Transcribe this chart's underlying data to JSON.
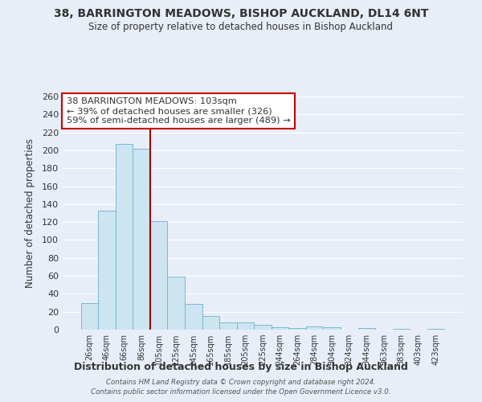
{
  "title": "38, BARRINGTON MEADOWS, BISHOP AUCKLAND, DL14 6NT",
  "subtitle": "Size of property relative to detached houses in Bishop Auckland",
  "xlabel": "Distribution of detached houses by size in Bishop Auckland",
  "ylabel": "Number of detached properties",
  "bar_labels": [
    "26sqm",
    "46sqm",
    "66sqm",
    "86sqm",
    "105sqm",
    "125sqm",
    "145sqm",
    "165sqm",
    "185sqm",
    "205sqm",
    "225sqm",
    "244sqm",
    "264sqm",
    "284sqm",
    "304sqm",
    "324sqm",
    "344sqm",
    "363sqm",
    "383sqm",
    "403sqm",
    "423sqm"
  ],
  "bar_values": [
    30,
    133,
    207,
    202,
    121,
    59,
    29,
    15,
    8,
    8,
    5,
    3,
    2,
    4,
    3,
    0,
    2,
    0,
    1,
    0,
    1
  ],
  "bar_color": "#cce5f0",
  "bar_edge_color": "#7ab8d4",
  "vline_color": "#990000",
  "annotation_title": "38 BARRINGTON MEADOWS: 103sqm",
  "annotation_line1": "← 39% of detached houses are smaller (326)",
  "annotation_line2": "59% of semi-detached houses are larger (489) →",
  "annotation_box_color": "#ffffff",
  "annotation_box_edge": "#cc0000",
  "ylim": [
    0,
    260
  ],
  "yticks": [
    0,
    20,
    40,
    60,
    80,
    100,
    120,
    140,
    160,
    180,
    200,
    220,
    240,
    260
  ],
  "bg_color": "#e8eef8",
  "grid_color": "#ffffff",
  "footer1": "Contains HM Land Registry data © Crown copyright and database right 2024.",
  "footer2": "Contains public sector information licensed under the Open Government Licence v3.0."
}
